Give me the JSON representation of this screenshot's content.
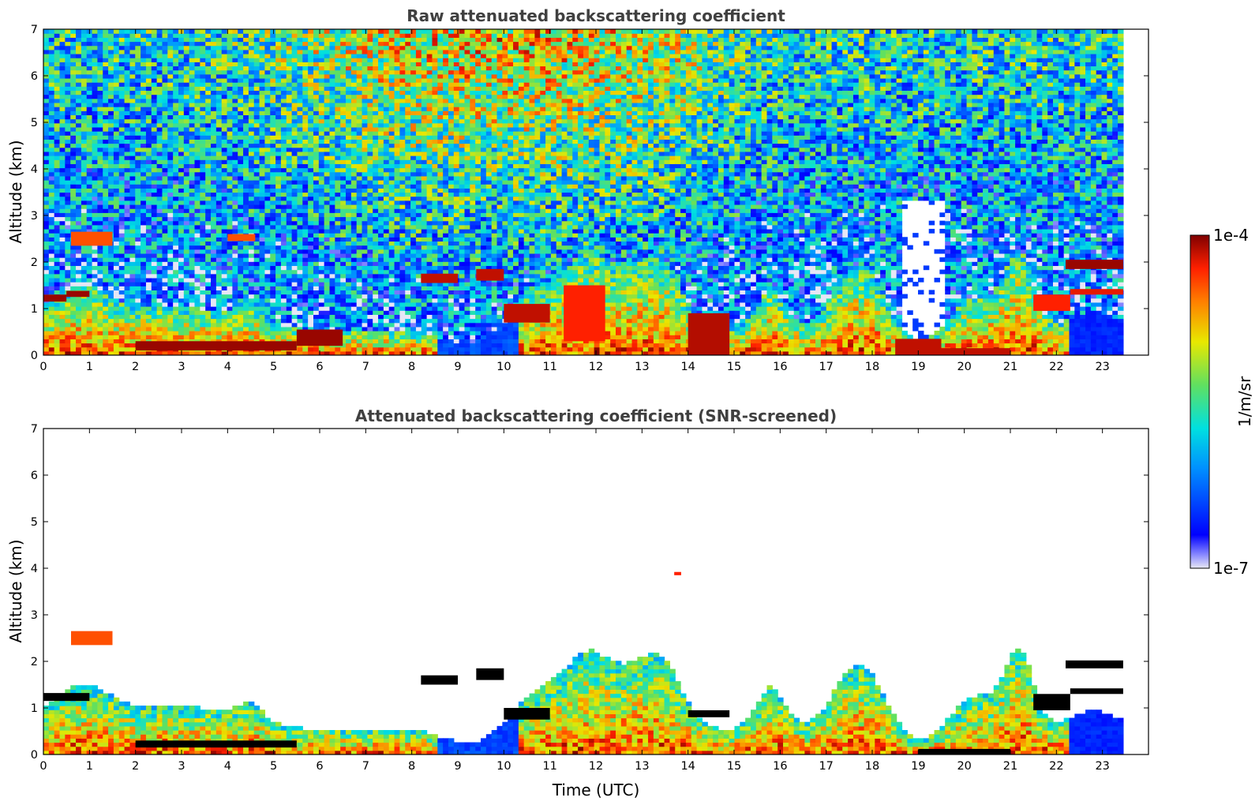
{
  "chart_data": [
    {
      "type": "heatmap",
      "title": "Raw attenuated backscattering coefficient",
      "xlabel": "",
      "ylabel": "Altitude (km)",
      "xlim": [
        0,
        24
      ],
      "ylim": [
        0,
        7
      ],
      "x_ticks": [
        "0",
        "1",
        "2",
        "3",
        "4",
        "5",
        "6",
        "7",
        "8",
        "9",
        "10",
        "11",
        "12",
        "13",
        "14",
        "15",
        "16",
        "17",
        "18",
        "19",
        "20",
        "21",
        "22",
        "23"
      ],
      "y_ticks": [
        "0",
        "1",
        "2",
        "3",
        "4",
        "5",
        "6",
        "7"
      ],
      "data_end_x": 23.45,
      "screened": false,
      "layers": [
        {
          "x0": 0.0,
          "x1": 0.5,
          "y0": 1.15,
          "y1": 1.3,
          "v": 0.98
        },
        {
          "x0": 0.5,
          "x1": 1.0,
          "y0": 1.25,
          "y1": 1.38,
          "v": 0.98
        },
        {
          "x0": 0.6,
          "x1": 1.5,
          "y0": 2.35,
          "y1": 2.65,
          "v": 0.85
        },
        {
          "x0": 2.0,
          "x1": 5.5,
          "y0": 0.1,
          "y1": 0.3,
          "v": 0.98
        },
        {
          "x0": 4.0,
          "x1": 4.6,
          "y0": 2.45,
          "y1": 2.6,
          "v": 0.85
        },
        {
          "x0": 5.5,
          "x1": 6.5,
          "y0": 0.2,
          "y1": 0.55,
          "v": 0.98
        },
        {
          "x0": 8.2,
          "x1": 9.0,
          "y0": 1.55,
          "y1": 1.75,
          "v": 0.95
        },
        {
          "x0": 9.4,
          "x1": 10.0,
          "y0": 1.6,
          "y1": 1.85,
          "v": 0.95
        },
        {
          "x0": 10.0,
          "x1": 11.0,
          "y0": 0.7,
          "y1": 1.1,
          "v": 0.95
        },
        {
          "x0": 11.3,
          "x1": 12.2,
          "y0": 0.3,
          "y1": 1.5,
          "v": 0.9
        },
        {
          "x0": 14.0,
          "x1": 14.9,
          "y0": 0.0,
          "y1": 0.9,
          "v": 0.96
        },
        {
          "x0": 18.5,
          "x1": 19.5,
          "y0": 0.0,
          "y1": 0.35,
          "v": 0.95
        },
        {
          "x0": 19.5,
          "x1": 21.0,
          "y0": 0.0,
          "y1": 0.15,
          "v": 0.95
        },
        {
          "x0": 22.2,
          "x1": 23.45,
          "y0": 1.85,
          "y1": 2.05,
          "v": 0.98
        },
        {
          "x0": 21.5,
          "x1": 22.3,
          "y0": 0.95,
          "y1": 1.3,
          "v": 0.9
        },
        {
          "x0": 22.3,
          "x1": 23.45,
          "y0": 1.3,
          "y1": 1.42,
          "v": 0.92
        }
      ]
    },
    {
      "type": "heatmap",
      "title": "Attenuated backscattering coefficient (SNR-screened)",
      "xlabel": "Time (UTC)",
      "ylabel": "Altitude (km)",
      "xlim": [
        0,
        24
      ],
      "ylim": [
        0,
        7
      ],
      "x_ticks": [
        "0",
        "1",
        "2",
        "3",
        "4",
        "5",
        "6",
        "7",
        "8",
        "9",
        "10",
        "11",
        "12",
        "13",
        "14",
        "15",
        "16",
        "17",
        "18",
        "19",
        "20",
        "21",
        "22",
        "23"
      ],
      "y_ticks": [
        "0",
        "1",
        "2",
        "3",
        "4",
        "5",
        "6",
        "7"
      ],
      "data_end_x": 23.45,
      "screened": true,
      "layers": [
        {
          "x0": 0.0,
          "x1": 1.0,
          "y0": 1.15,
          "y1": 1.32,
          "v": 0.0
        },
        {
          "x0": 0.6,
          "x1": 1.5,
          "y0": 2.35,
          "y1": 2.65,
          "v": 0.85
        },
        {
          "x0": 2.0,
          "x1": 5.5,
          "y0": 0.15,
          "y1": 0.3,
          "v": 0.0
        },
        {
          "x0": 8.2,
          "x1": 9.0,
          "y0": 1.5,
          "y1": 1.7,
          "v": 0.0
        },
        {
          "x0": 9.4,
          "x1": 10.0,
          "y0": 1.6,
          "y1": 1.85,
          "v": 0.0
        },
        {
          "x0": 10.0,
          "x1": 11.0,
          "y0": 0.75,
          "y1": 1.0,
          "v": 0.0
        },
        {
          "x0": 14.0,
          "x1": 14.9,
          "y0": 0.8,
          "y1": 0.95,
          "v": 0.0
        },
        {
          "x0": 19.0,
          "x1": 21.0,
          "y0": 0.0,
          "y1": 0.12,
          "v": 0.0
        },
        {
          "x0": 22.2,
          "x1": 23.45,
          "y0": 1.85,
          "y1": 2.02,
          "v": 0.0
        },
        {
          "x0": 21.5,
          "x1": 22.3,
          "y0": 0.95,
          "y1": 1.3,
          "v": 0.0
        },
        {
          "x0": 22.3,
          "x1": 23.45,
          "y0": 1.3,
          "y1": 1.42,
          "v": 0.0
        },
        {
          "x0": 13.7,
          "x1": 13.85,
          "y0": 3.85,
          "y1": 3.92,
          "v": 0.9
        }
      ]
    }
  ],
  "colorbar": {
    "max_label": "1e-4",
    "min_label": "1e-7",
    "unit_label": "1/m/sr",
    "scale": "log"
  }
}
